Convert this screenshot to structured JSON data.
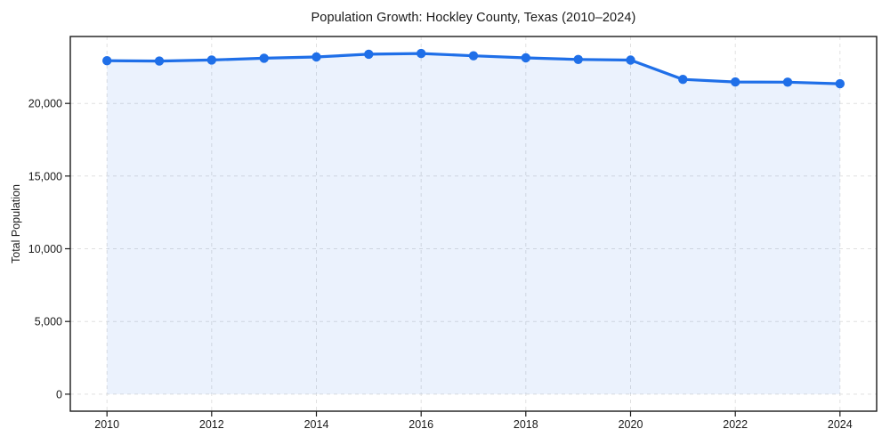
{
  "chart_data": {
    "type": "area",
    "title": "Population Growth: Hockley County, Texas (2010–2024)",
    "xlabel": "",
    "ylabel": "Total Population",
    "x": [
      2010,
      2011,
      2012,
      2013,
      2014,
      2015,
      2016,
      2017,
      2018,
      2019,
      2020,
      2021,
      2022,
      2023,
      2024
    ],
    "series": [
      {
        "name": "Total Population",
        "values": [
          22935,
          22912,
          22983,
          23105,
          23192,
          23382,
          23430,
          23270,
          23133,
          23021,
          22977,
          21650,
          21470,
          21460,
          21350
        ]
      }
    ],
    "xticks": [
      2010,
      2012,
      2014,
      2016,
      2018,
      2020,
      2022,
      2024
    ],
    "yticks": [
      0,
      5000,
      10000,
      15000,
      20000
    ],
    "ytick_labels": [
      "0",
      "5,000",
      "10,000",
      "15,000",
      "20,000"
    ],
    "xlim": [
      2009.3,
      2024.7
    ],
    "ylim": [
      -1171,
      24601
    ],
    "grid": true,
    "grid_style": "dashed",
    "legend": false,
    "marker": "circle",
    "fill_baseline": 0,
    "colors": {
      "line": "#1f6fe8",
      "fill": "rgba(31, 111, 232, 0.09)",
      "grid": "#e0e0e0",
      "axis": "#1a1a1a",
      "text": "#1a1a1a",
      "background": "#ffffff"
    }
  }
}
